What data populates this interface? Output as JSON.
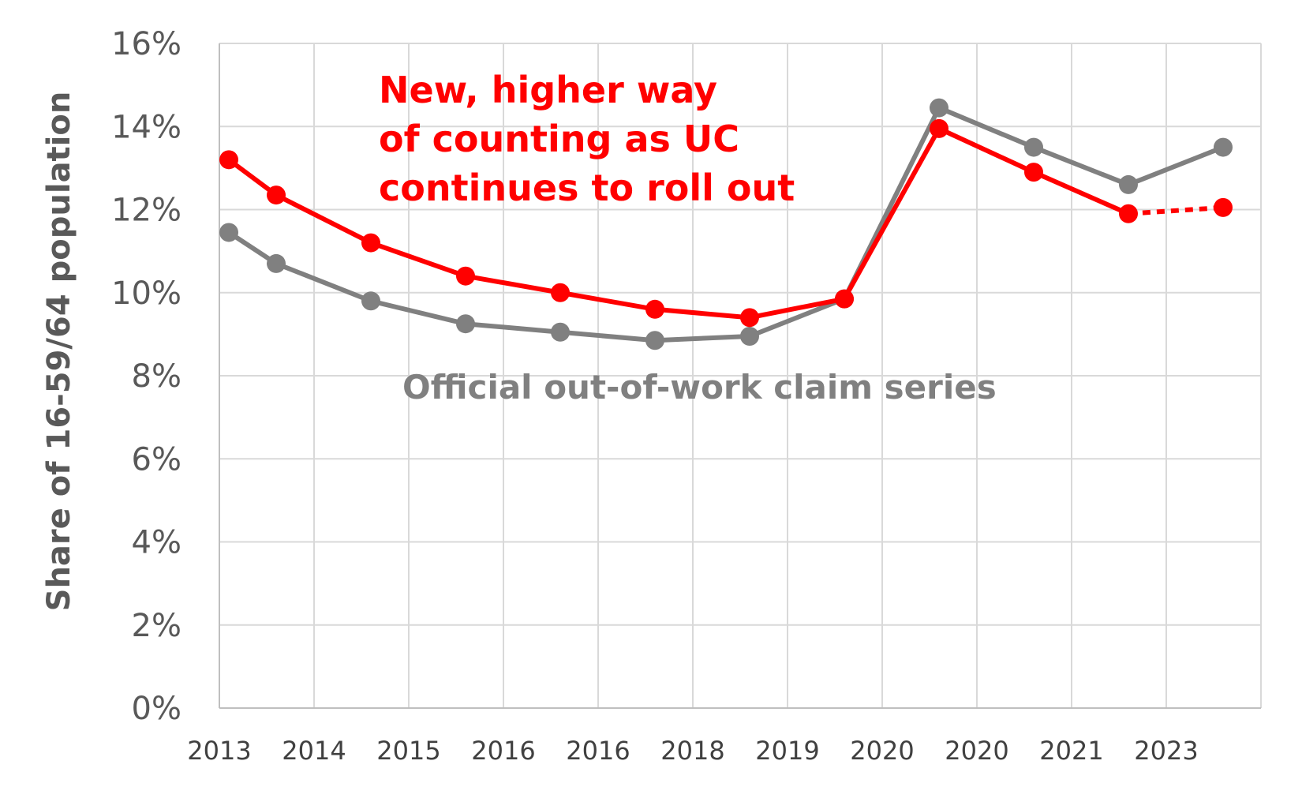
{
  "chart_data": {
    "type": "line",
    "xlabel": "",
    "ylabel": "Share of 16-59/64 population",
    "ylim": [
      0,
      16
    ],
    "y_ticks": [
      "0%",
      "2%",
      "4%",
      "6%",
      "8%",
      "10%",
      "12%",
      "14%",
      "16%"
    ],
    "x_ticks": [
      "2013",
      "2014",
      "2015",
      "2016",
      "2016",
      "2018",
      "2019",
      "2020",
      "2020",
      "2021",
      "2023"
    ],
    "grid": true,
    "legend": "none",
    "x": [
      2013.1,
      2013.6,
      2014.6,
      2015.6,
      2016.6,
      2017.6,
      2018.6,
      2019.6,
      2020.6,
      2021.6,
      2022.6,
      2023.6
    ],
    "series": [
      {
        "name": "New, higher way of counting as UC continues to roll out",
        "color": "#ff0000",
        "values": [
          13.2,
          12.35,
          11.2,
          10.4,
          10.0,
          9.6,
          9.4,
          9.85,
          13.95,
          12.9,
          11.9,
          12.05
        ],
        "dashed_from_index": 10
      },
      {
        "name": "Official out-of-work claim series",
        "color": "#808080",
        "values": [
          11.45,
          10.7,
          9.8,
          9.25,
          9.05,
          8.85,
          8.95,
          9.85,
          14.45,
          13.5,
          12.6,
          13.5
        ]
      }
    ],
    "annotations": {
      "red_lines": [
        "New, higher way",
        "of counting as UC",
        "continues to roll out"
      ],
      "grey": "Official out-of-work claim series"
    }
  }
}
